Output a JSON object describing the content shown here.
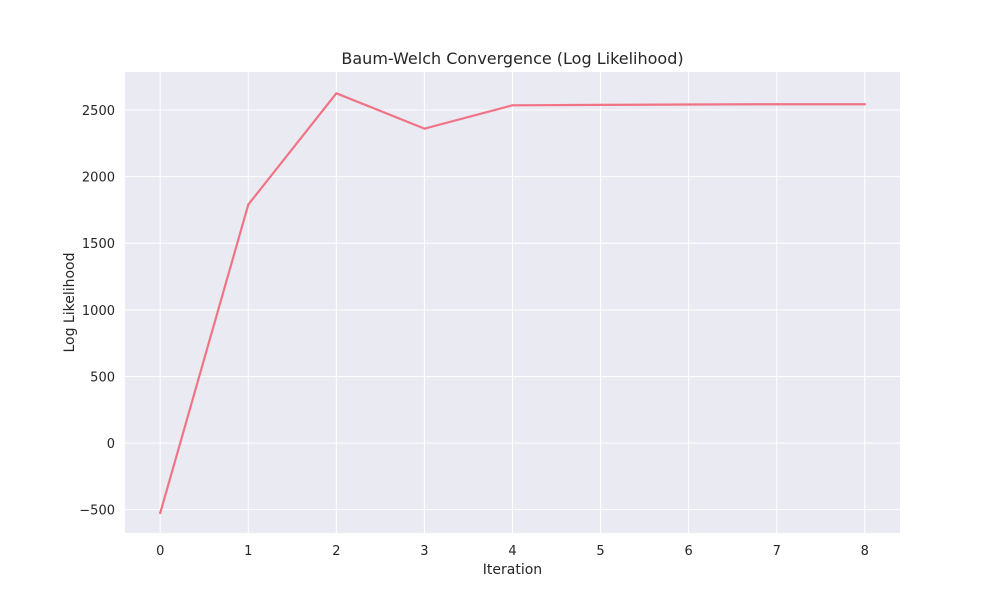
{
  "chart_data": {
    "type": "line",
    "title": "Baum-Welch Convergence (Log Likelihood)",
    "xlabel": "Iteration",
    "ylabel": "Log Likelihood",
    "x": [
      0,
      1,
      2,
      3,
      4,
      5,
      6,
      7,
      8
    ],
    "series": [
      {
        "values": [
          -525,
          1790,
          2625,
          2360,
          2535,
          2538,
          2541,
          2543,
          2543
        ],
        "color": "#f07386"
      }
    ],
    "xlim": [
      -0.4,
      8.4
    ],
    "ylim": [
      -675,
      2785
    ],
    "xticks": [
      0,
      1,
      2,
      3,
      4,
      5,
      6,
      7,
      8
    ],
    "xtick_labels": [
      "0",
      "1",
      "2",
      "3",
      "4",
      "5",
      "6",
      "7",
      "8"
    ],
    "yticks": [
      -500,
      0,
      500,
      1000,
      1500,
      2000,
      2500
    ],
    "ytick_labels": [
      "−500",
      "0",
      "500",
      "1000",
      "1500",
      "2000",
      "2500"
    ],
    "grid": true,
    "style": {
      "plot_background": "#eaeaf2",
      "grid_color": "#ffffff",
      "text_color": "#262626"
    }
  }
}
